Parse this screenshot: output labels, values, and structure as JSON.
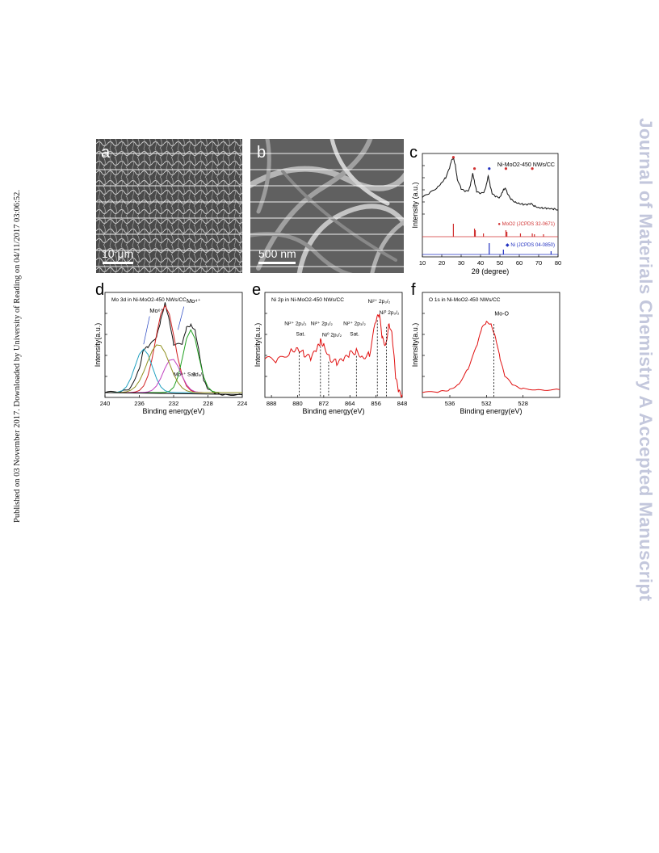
{
  "sidebar_left": {
    "text": "Published on 03 November 2017. Downloaded by University of Reading on 04/11/2017 03:06:52."
  },
  "watermark": {
    "text": "Journal of Materials Chemistry A Accepted Manuscript"
  },
  "panel_a": {
    "letter": "a",
    "scale_bar": "10 μm"
  },
  "panel_b": {
    "letter": "b",
    "scale_bar": "500 nm"
  },
  "panel_c": {
    "letter": "c",
    "chart_data": {
      "type": "line",
      "title": "Ni-MoO2-450 NWs/CC",
      "xlabel": "2θ (degree)",
      "ylabel": "Intensity (a.u.)",
      "xlim": [
        10,
        80
      ],
      "x_ticks": [
        "10",
        "20",
        "30",
        "40",
        "50",
        "60",
        "70",
        "80"
      ],
      "series": [
        {
          "name": "Ni-MoO2-450 NWs/CC",
          "x": [
            10,
            14,
            18,
            20,
            22,
            24,
            25,
            26,
            27,
            28,
            30,
            32,
            34,
            35,
            36,
            37,
            38,
            40,
            42,
            43,
            44,
            45,
            46,
            48,
            50,
            51,
            52,
            53,
            54,
            56,
            58,
            60,
            62,
            64,
            66,
            68,
            70,
            72,
            74,
            76,
            78,
            80
          ],
          "y": [
            0.3,
            0.38,
            0.48,
            0.56,
            0.64,
            0.8,
            0.93,
            0.98,
            0.86,
            0.62,
            0.45,
            0.4,
            0.42,
            0.55,
            0.72,
            0.55,
            0.4,
            0.36,
            0.4,
            0.52,
            0.68,
            0.5,
            0.36,
            0.31,
            0.3,
            0.38,
            0.44,
            0.45,
            0.35,
            0.26,
            0.22,
            0.2,
            0.18,
            0.17,
            0.19,
            0.15,
            0.13,
            0.12,
            0.11,
            0.1,
            0.1,
            0.09
          ]
        }
      ],
      "reference_labels": [
        "MoO2 (JCPDS 32-0671)",
        "Ni (JCPDS 04-0850)"
      ],
      "moo2_sticks": [
        26.0,
        36.9,
        37.3,
        41.5,
        53.1,
        53.6,
        60.6,
        66.7,
        67.8,
        72.5
      ],
      "ni_sticks": [
        44.5,
        51.8,
        76.4
      ]
    }
  },
  "panel_d": {
    "letter": "d",
    "chart_data": {
      "type": "line",
      "title": "Mo 3d in Ni-MoO2-450 NWs/CC",
      "xlabel": "Binding energy(eV)",
      "ylabel": "Intensity(a.u.)",
      "xlim": [
        240,
        224
      ],
      "x_ticks": [
        "240",
        "236",
        "232",
        "228",
        "224"
      ],
      "annotations": [
        "Mo6+",
        "Mo4+",
        "Mo4+ Sat.",
        "3d5/2"
      ],
      "series": [
        {
          "name": "experimental",
          "x": [
            240,
            238,
            237,
            236,
            235.5,
            235,
            234,
            233.5,
            233,
            232.5,
            232,
            231,
            230.5,
            230,
            229.5,
            229,
            228.5,
            228,
            227,
            226,
            224
          ],
          "y": [
            0.05,
            0.06,
            0.1,
            0.3,
            0.5,
            0.52,
            0.62,
            0.8,
            0.98,
            0.8,
            0.55,
            0.55,
            0.72,
            0.75,
            0.7,
            0.45,
            0.18,
            0.08,
            0.04,
            0.03,
            0.03
          ]
        }
      ]
    }
  },
  "panel_e": {
    "letter": "e",
    "chart_data": {
      "type": "line",
      "title": "Ni 2p in Ni-MoO2-450 NWs/CC",
      "xlabel": "Binding energy(eV)",
      "ylabel": "Intensity(a.u.)",
      "xlim": [
        890,
        848
      ],
      "x_ticks": [
        "888",
        "880",
        "872",
        "864",
        "856",
        "848"
      ],
      "annotations": [
        "Ni2+ 2p1/2",
        "Sat.",
        "Ni2+ 2p1/2",
        "Ni0 2p1/2",
        "Ni2+ 2p3/2",
        "Sat.",
        "Ni2+ 2p3/2",
        "Ni0 2p3/2"
      ],
      "series": [
        {
          "name": "Ni 2p",
          "x": [
            890,
            886,
            882,
            880,
            878,
            876,
            874,
            873,
            872,
            870,
            868,
            866,
            864,
            862,
            860,
            858,
            856,
            855,
            854,
            853,
            852,
            851,
            850,
            849,
            848
          ],
          "y": [
            0.4,
            0.38,
            0.48,
            0.52,
            0.45,
            0.4,
            0.5,
            0.58,
            0.55,
            0.4,
            0.36,
            0.38,
            0.45,
            0.48,
            0.42,
            0.45,
            0.8,
            0.85,
            0.6,
            0.55,
            0.78,
            0.62,
            0.2,
            0.05,
            0.03
          ]
        }
      ]
    }
  },
  "panel_f": {
    "letter": "f",
    "chart_data": {
      "type": "line",
      "title": "O 1s in Ni-MoO2-450 NWs/CC",
      "xlabel": "Binding energy(eV)",
      "ylabel": "Intensity(a.u.)",
      "xlim": [
        539,
        524
      ],
      "x_ticks": [
        "536",
        "532",
        "528"
      ],
      "annotations": [
        "Mo-O"
      ],
      "series": [
        {
          "name": "O 1s",
          "x": [
            539,
            537,
            536,
            535,
            534,
            533,
            532.5,
            532,
            531.5,
            531,
            530.5,
            530,
            529,
            528,
            526,
            524
          ],
          "y": [
            0.05,
            0.06,
            0.08,
            0.14,
            0.3,
            0.55,
            0.72,
            0.78,
            0.76,
            0.62,
            0.4,
            0.22,
            0.12,
            0.09,
            0.08,
            0.08
          ]
        }
      ]
    }
  }
}
